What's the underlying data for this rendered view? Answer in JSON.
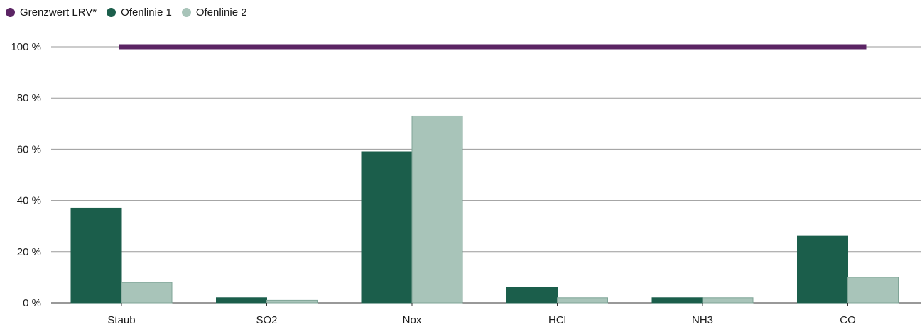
{
  "chart_data": {
    "type": "bar",
    "title": "",
    "xlabel": "",
    "ylabel": "",
    "categories": [
      "Staub",
      "SO2",
      "Nox",
      "HCl",
      "NH3",
      "CO"
    ],
    "series": [
      {
        "name": "Ofenlinie 1",
        "color": "#1b5e4b",
        "values": [
          37,
          2,
          59,
          6,
          2,
          26
        ]
      },
      {
        "name": "Ofenlinie 2",
        "color": "#a8c4b9",
        "values": [
          8,
          1,
          73,
          2,
          2,
          10
        ]
      }
    ],
    "threshold": {
      "name": "Grenzwert LRV*",
      "color": "#5b2464",
      "value": 100
    },
    "ylim": [
      0,
      100
    ],
    "yticks": [
      0,
      20,
      40,
      60,
      80,
      100
    ],
    "ytick_labels": [
      "0 %",
      "20 %",
      "40 %",
      "60 %",
      "80 %",
      "100 %"
    ],
    "grid": true,
    "legend_position": "top-left"
  }
}
